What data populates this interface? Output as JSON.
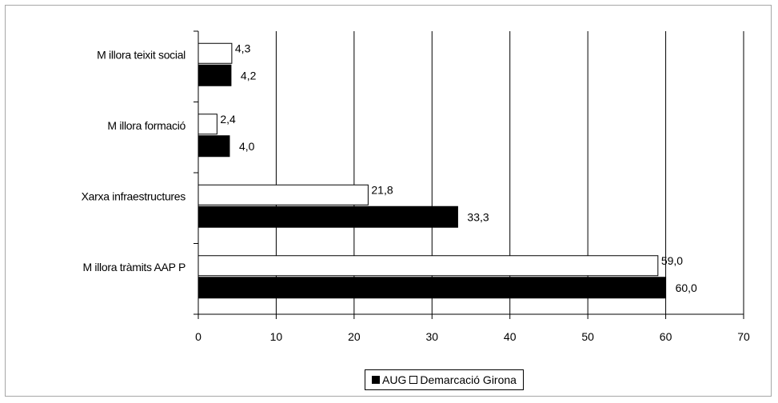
{
  "colors": {
    "AUG": "#000000",
    "Demarcació Girona": "#ffffff",
    "grid": "#000000"
  },
  "chart_data": {
    "type": "bar",
    "orientation": "horizontal",
    "categories": [
      "Millora tràmits AAPP",
      "Xarxa infraestructures",
      "Millora formació",
      "Millora teixit social"
    ],
    "category_labels": [
      "M illora tràmits AAP P",
      "Xarxa infraestructures",
      "M illora formació",
      "M illora teixit social"
    ],
    "series": [
      {
        "name": "AUG",
        "values": [
          60.0,
          33.3,
          4.0,
          4.2
        ],
        "labels": [
          "60,0",
          "33,3",
          "4,0",
          "4,2"
        ]
      },
      {
        "name": "Demarcació Girona",
        "values": [
          59.0,
          21.8,
          2.4,
          4.3
        ],
        "labels": [
          "59,0",
          "21,8",
          "2,4",
          "4,3"
        ]
      }
    ],
    "xlim": [
      0,
      70
    ],
    "xticks": [
      "0",
      "10",
      "20",
      "30",
      "40",
      "50",
      "60",
      "70"
    ],
    "grid": "vertical",
    "legend_position": "bottom-center",
    "title": "",
    "xlabel": "",
    "ylabel": ""
  },
  "legend": {
    "items": [
      "AUG",
      "Demarcació Girona"
    ]
  }
}
